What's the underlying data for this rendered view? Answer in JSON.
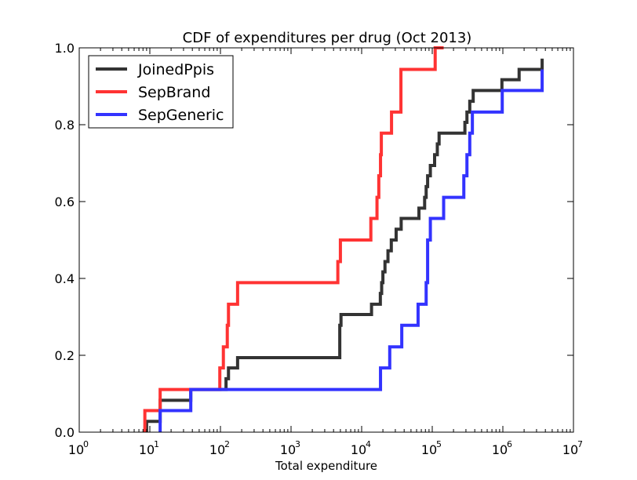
{
  "chart_data": {
    "type": "line",
    "step": "post",
    "title": "CDF of expenditures per drug (Oct 2013)",
    "xlabel": "Total expenditure",
    "ylabel": "",
    "xscale": "log",
    "xlim": [
      1,
      10000000
    ],
    "ylim": [
      0.0,
      1.0
    ],
    "grid": false,
    "legend_position": "upper-left",
    "x_tick_labels": [
      {
        "base": "10",
        "exp": "0"
      },
      {
        "base": "10",
        "exp": "1"
      },
      {
        "base": "10",
        "exp": "2"
      },
      {
        "base": "10",
        "exp": "3"
      },
      {
        "base": "10",
        "exp": "4"
      },
      {
        "base": "10",
        "exp": "5"
      },
      {
        "base": "10",
        "exp": "6"
      },
      {
        "base": "10",
        "exp": "7"
      }
    ],
    "y_tick_labels": [
      "0.0",
      "0.2",
      "0.4",
      "0.6",
      "0.8",
      "1.0"
    ],
    "series": [
      {
        "name": "JoinedPpis",
        "color": "#333333",
        "x": [
          9,
          14,
          38,
          120,
          130,
          175,
          4900,
          5100,
          13800,
          18400,
          19200,
          20000,
          21400,
          23600,
          26300,
          30800,
          36300,
          64800,
          78000,
          82000,
          86000,
          94000,
          108000,
          118000,
          125000,
          290000,
          310000,
          340000,
          380000,
          970000,
          1700000,
          3600000
        ],
        "y": [
          0.028,
          0.083,
          0.111,
          0.139,
          0.167,
          0.194,
          0.278,
          0.306,
          0.333,
          0.361,
          0.389,
          0.417,
          0.444,
          0.472,
          0.5,
          0.528,
          0.556,
          0.583,
          0.611,
          0.639,
          0.667,
          0.694,
          0.722,
          0.75,
          0.778,
          0.806,
          0.833,
          0.861,
          0.889,
          0.917,
          0.944,
          0.972
        ]
      },
      {
        "name": "SepBrand",
        "color": "#ff3333",
        "x": [
          8.5,
          14,
          98,
          110,
          125,
          130,
          175,
          4600,
          5000,
          13500,
          16500,
          17500,
          18500,
          19000,
          26500,
          36000,
          110000,
          145000
        ],
        "y": [
          0.056,
          0.111,
          0.167,
          0.222,
          0.278,
          0.333,
          0.389,
          0.444,
          0.5,
          0.556,
          0.611,
          0.667,
          0.722,
          0.778,
          0.833,
          0.944,
          1.0,
          1.0
        ]
      },
      {
        "name": "SepGeneric",
        "color": "#3333ff",
        "x": [
          14,
          38,
          18500,
          25000,
          37000,
          63000,
          82000,
          86000,
          94000,
          145000,
          280000,
          310000,
          340000,
          370000,
          980000,
          3600000
        ],
        "y": [
          0.056,
          0.111,
          0.167,
          0.222,
          0.278,
          0.333,
          0.389,
          0.5,
          0.556,
          0.611,
          0.667,
          0.722,
          0.778,
          0.833,
          0.889,
          0.944
        ]
      }
    ]
  }
}
